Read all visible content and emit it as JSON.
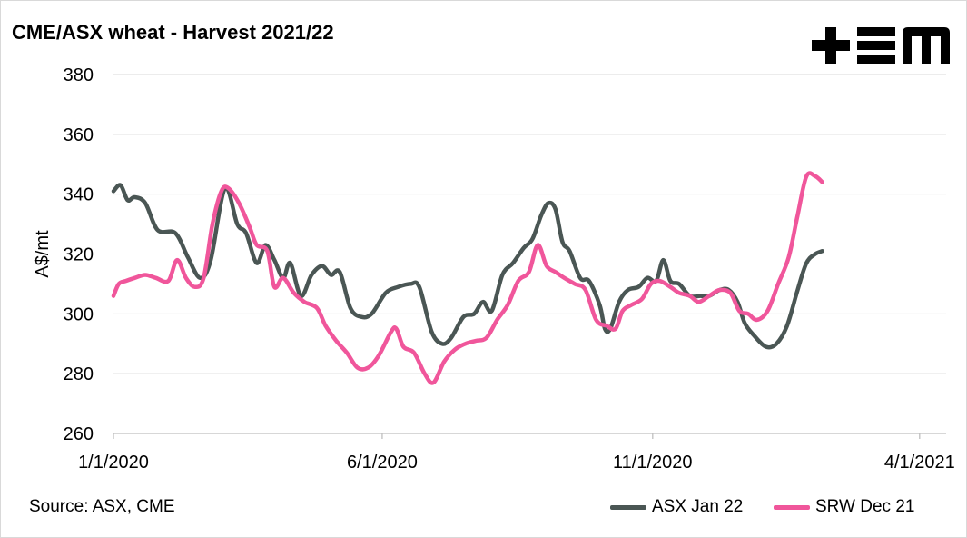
{
  "chart_data": {
    "type": "line",
    "title": "CME/ASX wheat - Harvest 2021/22",
    "xlabel": "",
    "ylabel": "A$/mt",
    "ylim": [
      260,
      380
    ],
    "yticks": [
      260,
      280,
      300,
      320,
      340,
      360,
      380
    ],
    "ytick_labels": [
      "260",
      "280",
      "300",
      "320",
      "340",
      "360",
      "380"
    ],
    "xlim": [
      "2020-01-01",
      "2021-04-16"
    ],
    "xticks": [
      "2020-01-01",
      "2020-06-01",
      "2020-11-01",
      "2021-04-01"
    ],
    "xtick_labels": [
      "1/1/2020",
      "6/1/2020",
      "11/1/2020",
      "4/1/2021"
    ],
    "grid": true,
    "legend_position": "bottom-right",
    "source": "Source: ASX, CME",
    "logo_text": "+EM",
    "series": [
      {
        "name": "ASX Jan 22",
        "color": "#4a5654",
        "points": [
          [
            "2020-01-01",
            341
          ],
          [
            "2020-01-05",
            343
          ],
          [
            "2020-01-09",
            338
          ],
          [
            "2020-01-13",
            339
          ],
          [
            "2020-01-19",
            337
          ],
          [
            "2020-01-26",
            328
          ],
          [
            "2020-02-05",
            327
          ],
          [
            "2020-02-12",
            319
          ],
          [
            "2020-02-19",
            312
          ],
          [
            "2020-02-25",
            318
          ],
          [
            "2020-03-04",
            342
          ],
          [
            "2020-03-11",
            330
          ],
          [
            "2020-03-16",
            327
          ],
          [
            "2020-03-22",
            317
          ],
          [
            "2020-03-27",
            323
          ],
          [
            "2020-04-01",
            318
          ],
          [
            "2020-04-06",
            312
          ],
          [
            "2020-04-10",
            317
          ],
          [
            "2020-04-16",
            306
          ],
          [
            "2020-04-22",
            313
          ],
          [
            "2020-04-28",
            316
          ],
          [
            "2020-05-03",
            313
          ],
          [
            "2020-05-08",
            314
          ],
          [
            "2020-05-14",
            302
          ],
          [
            "2020-05-20",
            299
          ],
          [
            "2020-05-26",
            300
          ],
          [
            "2020-06-03",
            307
          ],
          [
            "2020-06-10",
            309
          ],
          [
            "2020-06-17",
            310
          ],
          [
            "2020-06-22",
            309
          ],
          [
            "2020-06-29",
            294
          ],
          [
            "2020-07-05",
            290
          ],
          [
            "2020-07-10",
            292
          ],
          [
            "2020-07-17",
            299
          ],
          [
            "2020-07-23",
            300
          ],
          [
            "2020-07-28",
            304
          ],
          [
            "2020-08-02",
            301
          ],
          [
            "2020-08-08",
            313
          ],
          [
            "2020-08-14",
            317
          ],
          [
            "2020-08-20",
            322
          ],
          [
            "2020-08-25",
            325
          ],
          [
            "2020-08-30",
            333
          ],
          [
            "2020-09-03",
            337
          ],
          [
            "2020-09-07",
            335
          ],
          [
            "2020-09-11",
            324
          ],
          [
            "2020-09-15",
            321
          ],
          [
            "2020-09-21",
            312
          ],
          [
            "2020-09-26",
            311
          ],
          [
            "2020-10-02",
            303
          ],
          [
            "2020-10-05",
            295
          ],
          [
            "2020-10-08",
            295
          ],
          [
            "2020-10-13",
            304
          ],
          [
            "2020-10-18",
            308
          ],
          [
            "2020-10-24",
            309
          ],
          [
            "2020-10-29",
            312
          ],
          [
            "2020-11-03",
            311
          ],
          [
            "2020-11-07",
            318
          ],
          [
            "2020-11-11",
            311
          ],
          [
            "2020-11-16",
            310
          ],
          [
            "2020-11-22",
            306
          ],
          [
            "2020-11-28",
            306
          ],
          [
            "2020-12-03",
            306
          ],
          [
            "2020-12-09",
            308
          ],
          [
            "2020-12-14",
            308
          ],
          [
            "2020-12-19",
            304
          ],
          [
            "2020-12-23",
            297
          ],
          [
            "2020-12-28",
            293
          ],
          [
            "2021-01-04",
            289
          ],
          [
            "2021-01-10",
            290
          ],
          [
            "2021-01-16",
            296
          ],
          [
            "2021-01-22",
            308
          ],
          [
            "2021-01-27",
            317
          ],
          [
            "2021-02-01",
            320
          ],
          [
            "2021-02-05",
            321
          ]
        ]
      },
      {
        "name": "SRW Dec 21",
        "color": "#f0569b",
        "points": [
          [
            "2020-01-01",
            306
          ],
          [
            "2020-01-04",
            310
          ],
          [
            "2020-01-08",
            311
          ],
          [
            "2020-01-13",
            312
          ],
          [
            "2020-01-19",
            313
          ],
          [
            "2020-01-25",
            312
          ],
          [
            "2020-02-01",
            311
          ],
          [
            "2020-02-06",
            318
          ],
          [
            "2020-02-11",
            312
          ],
          [
            "2020-02-16",
            309
          ],
          [
            "2020-02-21",
            312
          ],
          [
            "2020-02-26",
            330
          ],
          [
            "2020-03-02",
            341
          ],
          [
            "2020-03-06",
            342
          ],
          [
            "2020-03-12",
            337
          ],
          [
            "2020-03-18",
            329
          ],
          [
            "2020-03-22",
            323
          ],
          [
            "2020-03-28",
            321
          ],
          [
            "2020-04-01",
            309
          ],
          [
            "2020-04-06",
            312
          ],
          [
            "2020-04-12",
            307
          ],
          [
            "2020-04-18",
            304
          ],
          [
            "2020-04-25",
            302
          ],
          [
            "2020-04-30",
            296
          ],
          [
            "2020-05-06",
            291
          ],
          [
            "2020-05-12",
            287
          ],
          [
            "2020-05-18",
            282
          ],
          [
            "2020-05-24",
            282
          ],
          [
            "2020-05-30",
            286
          ],
          [
            "2020-06-06",
            294
          ],
          [
            "2020-06-09",
            295
          ],
          [
            "2020-06-13",
            289
          ],
          [
            "2020-06-19",
            287
          ],
          [
            "2020-06-25",
            280
          ],
          [
            "2020-06-30",
            277
          ],
          [
            "2020-07-06",
            284
          ],
          [
            "2020-07-12",
            288
          ],
          [
            "2020-07-18",
            290
          ],
          [
            "2020-07-24",
            291
          ],
          [
            "2020-07-30",
            292
          ],
          [
            "2020-08-05",
            298
          ],
          [
            "2020-08-11",
            303
          ],
          [
            "2020-08-17",
            311
          ],
          [
            "2020-08-23",
            314
          ],
          [
            "2020-08-28",
            323
          ],
          [
            "2020-09-02",
            316
          ],
          [
            "2020-09-07",
            314
          ],
          [
            "2020-09-12",
            312
          ],
          [
            "2020-09-18",
            310
          ],
          [
            "2020-09-24",
            308
          ],
          [
            "2020-09-30",
            298
          ],
          [
            "2020-10-06",
            296
          ],
          [
            "2020-10-11",
            295
          ],
          [
            "2020-10-15",
            301
          ],
          [
            "2020-10-20",
            303
          ],
          [
            "2020-10-26",
            305
          ],
          [
            "2020-10-31",
            310
          ],
          [
            "2020-11-05",
            311
          ],
          [
            "2020-11-11",
            309
          ],
          [
            "2020-11-16",
            307
          ],
          [
            "2020-11-22",
            306
          ],
          [
            "2020-11-27",
            304
          ],
          [
            "2020-12-03",
            306
          ],
          [
            "2020-12-09",
            308
          ],
          [
            "2020-12-15",
            307
          ],
          [
            "2020-12-20",
            301
          ],
          [
            "2020-12-25",
            300
          ],
          [
            "2020-12-30",
            298
          ],
          [
            "2021-01-05",
            301
          ],
          [
            "2021-01-11",
            310
          ],
          [
            "2021-01-17",
            319
          ],
          [
            "2021-01-22",
            333
          ],
          [
            "2021-01-27",
            346
          ],
          [
            "2021-02-01",
            346
          ],
          [
            "2021-02-05",
            344
          ]
        ]
      }
    ]
  }
}
